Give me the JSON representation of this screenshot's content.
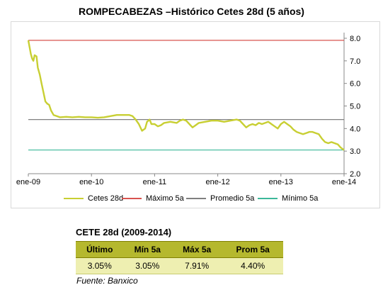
{
  "chart_data": {
    "type": "line",
    "title": "ROMPECABEZAS –Histórico Cetes 28d (5 años)",
    "x_tick_labels": [
      "ene-09",
      "ene-10",
      "ene-11",
      "ene-12",
      "ene-13",
      "ene-14"
    ],
    "x_range": [
      "2009-01",
      "2014-01"
    ],
    "ylim": [
      2.0,
      8.0
    ],
    "y_ticks": [
      "2.0",
      "3.0",
      "4.0",
      "5.0",
      "6.0",
      "7.0",
      "8.0"
    ],
    "y_axis_position": "right",
    "grid": false,
    "legend_position": "bottom",
    "series": [
      {
        "name": "Cetes 28d",
        "color": "#c8cf33",
        "points": [
          [
            2009.0,
            7.91
          ],
          [
            2009.02,
            7.6
          ],
          [
            2009.04,
            7.3
          ],
          [
            2009.06,
            7.1
          ],
          [
            2009.08,
            7.0
          ],
          [
            2009.1,
            7.25
          ],
          [
            2009.13,
            7.2
          ],
          [
            2009.15,
            6.7
          ],
          [
            2009.18,
            6.4
          ],
          [
            2009.21,
            6.0
          ],
          [
            2009.24,
            5.6
          ],
          [
            2009.27,
            5.2
          ],
          [
            2009.3,
            5.1
          ],
          [
            2009.33,
            5.05
          ],
          [
            2009.36,
            4.8
          ],
          [
            2009.4,
            4.6
          ],
          [
            2009.45,
            4.55
          ],
          [
            2009.5,
            4.5
          ],
          [
            2009.6,
            4.52
          ],
          [
            2009.7,
            4.5
          ],
          [
            2009.8,
            4.52
          ],
          [
            2009.9,
            4.5
          ],
          [
            2010.0,
            4.5
          ],
          [
            2010.1,
            4.48
          ],
          [
            2010.2,
            4.5
          ],
          [
            2010.3,
            4.55
          ],
          [
            2010.4,
            4.6
          ],
          [
            2010.5,
            4.6
          ],
          [
            2010.6,
            4.6
          ],
          [
            2010.65,
            4.55
          ],
          [
            2010.7,
            4.4
          ],
          [
            2010.75,
            4.2
          ],
          [
            2010.8,
            3.9
          ],
          [
            2010.85,
            4.0
          ],
          [
            2010.88,
            4.3
          ],
          [
            2010.92,
            4.4
          ],
          [
            2010.95,
            4.2
          ],
          [
            2011.0,
            4.2
          ],
          [
            2011.05,
            4.1
          ],
          [
            2011.1,
            4.15
          ],
          [
            2011.15,
            4.25
          ],
          [
            2011.25,
            4.3
          ],
          [
            2011.35,
            4.25
          ],
          [
            2011.4,
            4.35
          ],
          [
            2011.45,
            4.4
          ],
          [
            2011.5,
            4.35
          ],
          [
            2011.55,
            4.2
          ],
          [
            2011.6,
            4.05
          ],
          [
            2011.65,
            4.15
          ],
          [
            2011.7,
            4.25
          ],
          [
            2011.8,
            4.3
          ],
          [
            2011.9,
            4.35
          ],
          [
            2012.0,
            4.35
          ],
          [
            2012.1,
            4.3
          ],
          [
            2012.2,
            4.35
          ],
          [
            2012.3,
            4.4
          ],
          [
            2012.35,
            4.35
          ],
          [
            2012.4,
            4.2
          ],
          [
            2012.45,
            4.05
          ],
          [
            2012.5,
            4.15
          ],
          [
            2012.55,
            4.2
          ],
          [
            2012.6,
            4.15
          ],
          [
            2012.65,
            4.25
          ],
          [
            2012.7,
            4.2
          ],
          [
            2012.8,
            4.3
          ],
          [
            2012.85,
            4.2
          ],
          [
            2012.9,
            4.1
          ],
          [
            2012.95,
            4.0
          ],
          [
            2013.0,
            4.2
          ],
          [
            2013.05,
            4.3
          ],
          [
            2013.1,
            4.2
          ],
          [
            2013.15,
            4.1
          ],
          [
            2013.2,
            3.95
          ],
          [
            2013.25,
            3.85
          ],
          [
            2013.3,
            3.8
          ],
          [
            2013.35,
            3.75
          ],
          [
            2013.4,
            3.8
          ],
          [
            2013.45,
            3.85
          ],
          [
            2013.5,
            3.85
          ],
          [
            2013.55,
            3.8
          ],
          [
            2013.6,
            3.75
          ],
          [
            2013.65,
            3.55
          ],
          [
            2013.7,
            3.4
          ],
          [
            2013.75,
            3.35
          ],
          [
            2013.8,
            3.4
          ],
          [
            2013.85,
            3.35
          ],
          [
            2013.9,
            3.3
          ],
          [
            2013.95,
            3.15
          ],
          [
            2014.0,
            3.05
          ]
        ]
      },
      {
        "name": "Máximo 5a",
        "color": "#d9534f",
        "constant": 7.91
      },
      {
        "name": "Promedio 5a",
        "color": "#808080",
        "constant": 4.4
      },
      {
        "name": "Mínimo 5a",
        "color": "#3cb89a",
        "constant": 3.05
      }
    ]
  },
  "table": {
    "title": "CETE 28d (2009-2014)",
    "headers": [
      "Último",
      "Mín 5a",
      "Máx 5a",
      "Prom 5a"
    ],
    "values": [
      "3.05%",
      "3.05%",
      "7.91%",
      "4.40%"
    ]
  },
  "source": "Fuente: Banxico"
}
